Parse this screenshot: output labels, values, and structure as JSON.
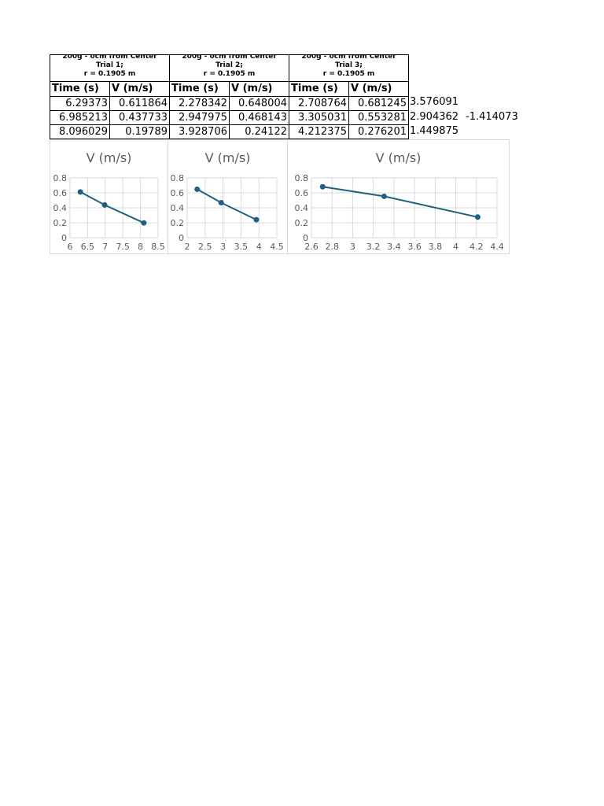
{
  "trials": [
    {
      "header": [
        "200g - 0cm from Center",
        "Trial 1;",
        "r = 0.1905 m"
      ],
      "col_time": "Time (s)",
      "col_v": "V (m/s)",
      "rows": [
        [
          "6.29373",
          "0.611864"
        ],
        [
          "6.985213",
          "0.437733"
        ],
        [
          "8.096029",
          "0.19789"
        ]
      ]
    },
    {
      "header": [
        "200g - 0cm from Center",
        "Trial 2;",
        "r = 0.1905 m"
      ],
      "col_time": "Time (s)",
      "col_v": "V (m/s)",
      "rows": [
        [
          "2.278342",
          "0.648004"
        ],
        [
          "2.947975",
          "0.468143"
        ],
        [
          "3.928706",
          "0.24122"
        ]
      ]
    },
    {
      "header": [
        "200g - 0cm from Center",
        "Trial 3;",
        "r = 0.1905 m"
      ],
      "col_time": "Time (s)",
      "col_v": "V (m/s)",
      "rows": [
        [
          "2.708764",
          "0.681245"
        ],
        [
          "3.305031",
          "0.553281"
        ],
        [
          "4.212375",
          "0.276201"
        ]
      ]
    }
  ],
  "side_values": [
    [
      "3.576091"
    ],
    [
      "2.904362",
      "-1.414073"
    ],
    [
      "1.449875"
    ]
  ],
  "chart_data": [
    {
      "type": "line",
      "title": "V (m/s)",
      "x": [
        6.29373,
        6.985213,
        8.096029
      ],
      "y": [
        0.611864,
        0.437733,
        0.19789
      ],
      "xlim": [
        6,
        8.5
      ],
      "ylim": [
        0,
        0.8
      ],
      "xticks": [
        "6",
        "6.5",
        "7",
        "7.5",
        "8",
        "8.5"
      ],
      "yticks": [
        "0",
        "0.2",
        "0.4",
        "0.6",
        "0.8"
      ],
      "grid": true,
      "color": "#1f5f80"
    },
    {
      "type": "line",
      "title": "V (m/s)",
      "x": [
        2.278342,
        2.947975,
        3.928706
      ],
      "y": [
        0.648004,
        0.468143,
        0.24122
      ],
      "xlim": [
        2,
        4.5
      ],
      "ylim": [
        0,
        0.8
      ],
      "xticks": [
        "2",
        "2.5",
        "3",
        "3.5",
        "4",
        "4.5"
      ],
      "yticks": [
        "0",
        "0.2",
        "0.4",
        "0.6",
        "0.8"
      ],
      "grid": true,
      "color": "#1f5f80"
    },
    {
      "type": "line",
      "title": "V (m/s)",
      "x": [
        2.708764,
        3.305031,
        4.212375
      ],
      "y": [
        0.681245,
        0.553281,
        0.276201
      ],
      "xlim": [
        2.6,
        4.4
      ],
      "ylim": [
        0,
        0.8
      ],
      "xticks": [
        "2.6",
        "2.8",
        "3",
        "3.2",
        "3.4",
        "3.6",
        "3.8",
        "4",
        "4.2",
        "4.4"
      ],
      "yticks": [
        "0",
        "0.2",
        "0.4",
        "0.6",
        "0.8"
      ],
      "grid": true,
      "color": "#1f5f80"
    }
  ]
}
